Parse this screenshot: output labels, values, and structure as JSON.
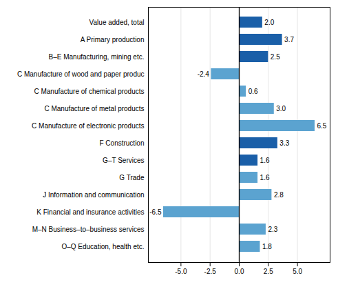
{
  "chart_data": {
    "type": "bar",
    "orientation": "horizontal",
    "categories": [
      "Value added, total",
      "A Primary production",
      "B–E Manufacturing, mining etc.",
      "C Manufacture of wood and paper produc",
      "C Manufacture of chemical products",
      "C Manufacture of metal products",
      "C Manufacture of electronic products",
      "F Construction",
      "G–T Services",
      "G Trade",
      "J Information and communication",
      "K Financial and insurance activities",
      "M–N Business–to–business services",
      "O–Q Education, health etc."
    ],
    "values": [
      2.0,
      3.7,
      2.5,
      -2.4,
      0.6,
      3.0,
      6.5,
      3.3,
      1.6,
      1.6,
      2.8,
      -6.5,
      2.3,
      1.8
    ],
    "value_labels": [
      "2.0",
      "3.7",
      "2.5",
      "-2.4",
      "0.6",
      "3.0",
      "6.5",
      "3.3",
      "1.6",
      "1.6",
      "2.8",
      "-6.5",
      "2.3",
      "1.8"
    ],
    "colors": [
      "#1a5fa8",
      "#1a5fa8",
      "#1a5fa8",
      "#5ba3d0",
      "#5ba3d0",
      "#5ba3d0",
      "#5ba3d0",
      "#1a5fa8",
      "#1a5fa8",
      "#5ba3d0",
      "#5ba3d0",
      "#5ba3d0",
      "#5ba3d0",
      "#5ba3d0"
    ],
    "xlim": [
      -7.8,
      7.8
    ],
    "xticks": [
      {
        "value": -5,
        "label": "-5.0"
      },
      -2.5,
      {
        "value": 0,
        "label": "0.0"
      },
      2.5,
      {
        "value": 5,
        "label": "5.0"
      }
    ],
    "grid": true,
    "data_labels": true
  }
}
